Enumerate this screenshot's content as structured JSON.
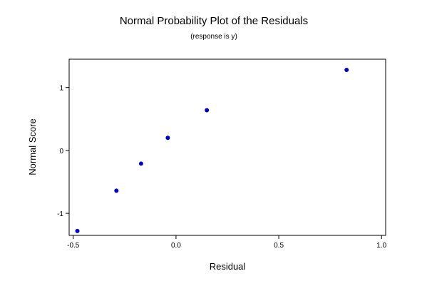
{
  "chart_data": {
    "type": "scatter",
    "title": "Normal Probability Plot of the Residuals",
    "subtitle": "(response is y)",
    "xlabel": "Residual",
    "ylabel": "Normal Score",
    "xlim": [
      -0.52,
      1.02
    ],
    "ylim": [
      -1.35,
      1.45
    ],
    "x_ticks": [
      -0.5,
      0.0,
      0.5,
      1.0
    ],
    "x_tick_labels": [
      "-0.5",
      "0.0",
      "0.5",
      "1.0"
    ],
    "y_ticks": [
      -1,
      0,
      1
    ],
    "y_tick_labels": [
      "-1",
      "0",
      "1"
    ],
    "grid": false,
    "legend": "none",
    "point_color": "#0000cc",
    "series": [
      {
        "x": [
          -0.48,
          -0.29,
          -0.17,
          -0.04,
          0.15,
          0.83
        ],
        "y": [
          -1.28,
          -0.64,
          -0.21,
          0.2,
          0.64,
          1.28
        ]
      }
    ]
  }
}
